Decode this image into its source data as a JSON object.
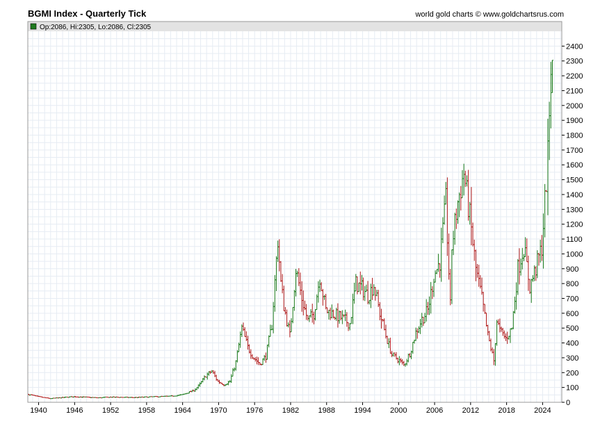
{
  "header": {
    "title": "BGMI Index - Quarterly Tick",
    "credit": "world gold charts © www.goldchartsrus.com"
  },
  "colors": {
    "up": "#1a7a1a",
    "down": "#b01818",
    "legend_swatch": "#1f7a1f",
    "grid": "#e6ecf3",
    "frame": "#9a9a9a",
    "legend_bg": "#e3e3e3"
  },
  "chart_data": {
    "type": "ohlc",
    "frequency": "quarterly",
    "legend": "Op:2086, Hi:2305, Lo:2086, Cl:2305",
    "last_bar": {
      "open": 2086,
      "high": 2305,
      "low": 2086,
      "close": 2305
    },
    "ylim": [
      0,
      2500
    ],
    "yticks": [
      0,
      100,
      200,
      300,
      400,
      500,
      600,
      700,
      800,
      900,
      1000,
      1100,
      1200,
      1300,
      1400,
      1500,
      1600,
      1700,
      1800,
      1900,
      2000,
      2100,
      2200,
      2300,
      2400
    ],
    "xlim": [
      1938.2,
      2027.2
    ],
    "xticks": [
      1940,
      1946,
      1952,
      1958,
      1964,
      1970,
      1976,
      1982,
      1988,
      1994,
      2000,
      2006,
      2012,
      2018,
      2024
    ],
    "grid": true,
    "y_axis_side": "right",
    "anchors": [
      [
        1938.2,
        55
      ],
      [
        1940,
        38
      ],
      [
        1942,
        25
      ],
      [
        1946,
        38
      ],
      [
        1950,
        30
      ],
      [
        1952,
        35
      ],
      [
        1956,
        32
      ],
      [
        1960,
        38
      ],
      [
        1962,
        40
      ],
      [
        1964,
        50
      ],
      [
        1966,
        80
      ],
      [
        1967,
        120
      ],
      [
        1968,
        180
      ],
      [
        1969,
        210
      ],
      [
        1970,
        140
      ],
      [
        1971,
        120
      ],
      [
        1972,
        140
      ],
      [
        1973,
        270
      ],
      [
        1974,
        500
      ],
      [
        1975,
        370
      ],
      [
        1976,
        300
      ],
      [
        1977,
        260
      ],
      [
        1978,
        310
      ],
      [
        1979,
        520
      ],
      [
        1980,
        1100
      ],
      [
        1980.5,
        800
      ],
      [
        1981,
        650
      ],
      [
        1982,
        450
      ],
      [
        1983,
        900
      ],
      [
        1984,
        700
      ],
      [
        1985,
        550
      ],
      [
        1986,
        600
      ],
      [
        1987,
        850
      ],
      [
        1988,
        620
      ],
      [
        1989,
        600
      ],
      [
        1990,
        580
      ],
      [
        1991,
        560
      ],
      [
        1992,
        530
      ],
      [
        1993,
        800
      ],
      [
        1994,
        770
      ],
      [
        1995,
        720
      ],
      [
        1996,
        790
      ],
      [
        1997,
        600
      ],
      [
        1998,
        450
      ],
      [
        1999,
        320
      ],
      [
        2000,
        290
      ],
      [
        2001,
        250
      ],
      [
        2002,
        330
      ],
      [
        2003,
        470
      ],
      [
        2004,
        560
      ],
      [
        2005,
        620
      ],
      [
        2006,
        850
      ],
      [
        2007,
        950
      ],
      [
        2008,
        1350
      ],
      [
        2008.8,
        600
      ],
      [
        2009,
        1050
      ],
      [
        2010,
        1350
      ],
      [
        2011,
        1550
      ],
      [
        2012,
        1250
      ],
      [
        2013,
        900
      ],
      [
        2014,
        700
      ],
      [
        2015,
        450
      ],
      [
        2016,
        280
      ],
      [
        2016.5,
        550
      ],
      [
        2017,
        480
      ],
      [
        2018,
        430
      ],
      [
        2019,
        500
      ],
      [
        2020,
        900
      ],
      [
        2021,
        1050
      ],
      [
        2022,
        780
      ],
      [
        2023,
        900
      ],
      [
        2024,
        1050
      ],
      [
        2024.5,
        1350
      ],
      [
        2025,
        1650
      ],
      [
        2025.5,
        2305
      ]
    ]
  }
}
